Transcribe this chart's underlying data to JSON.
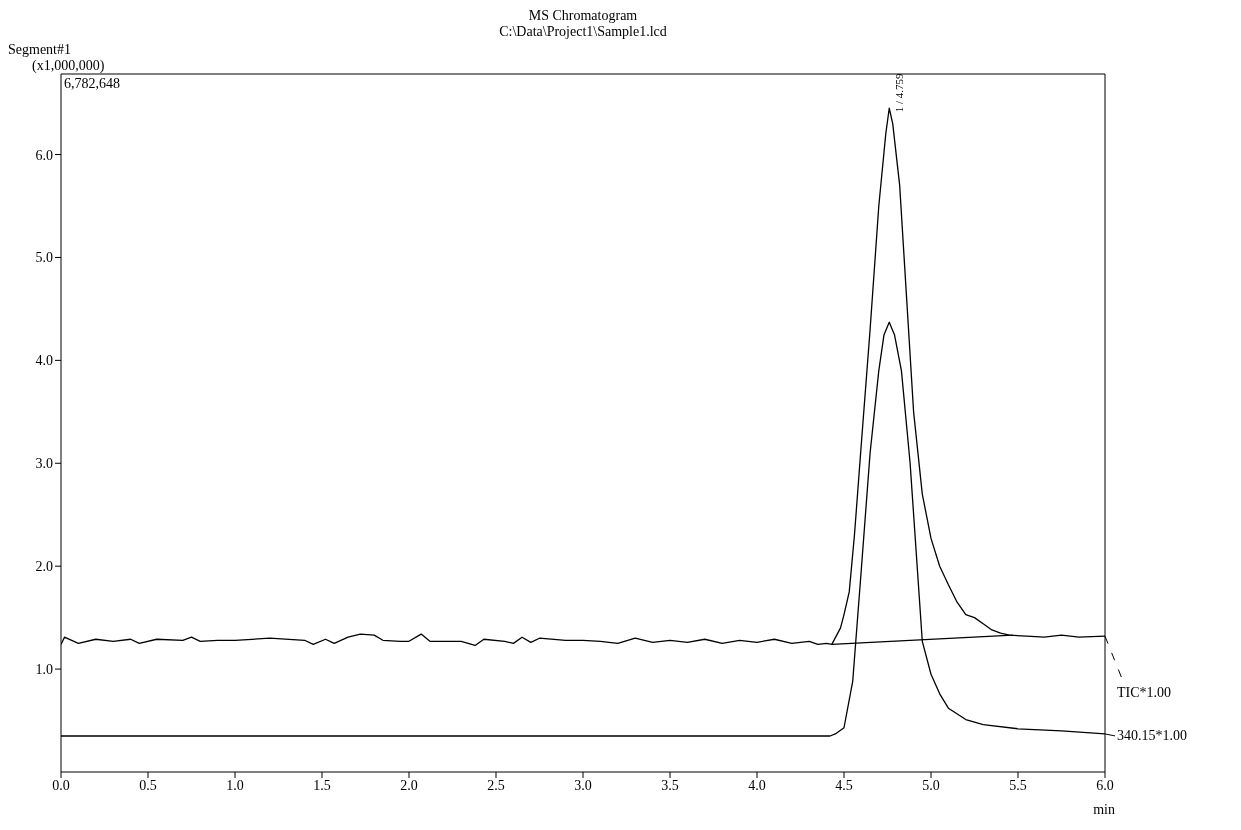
{
  "chart_data": {
    "type": "line",
    "title": "MS Chromatogram",
    "subtitle": "C:\\Data\\Project1\\Sample1.lcd",
    "xlabel": "min",
    "ylabel": "(x1,000,000)",
    "annotations": [
      "Segment#1",
      "6,782,648",
      {
        "text": "1 / 4.759",
        "x": 4.759,
        "y": 6.45
      }
    ],
    "xlim": [
      0,
      6
    ],
    "ylim": [
      0,
      6.782648
    ],
    "xticks": [
      {
        "value": 0,
        "label": "0.0"
      },
      0.5,
      {
        "value": 1,
        "label": "1.0"
      },
      1.5,
      {
        "value": 2,
        "label": "2.0"
      },
      2.5,
      {
        "value": 3,
        "label": "3.0"
      },
      3.5,
      {
        "value": 4,
        "label": "4.0"
      },
      4.5,
      {
        "value": 5,
        "label": "5.0"
      },
      5.5,
      {
        "value": 6,
        "label": "6.0"
      }
    ],
    "yticks": [
      {
        "value": 1,
        "label": "1.0"
      },
      {
        "value": 2,
        "label": "2.0"
      },
      {
        "value": 3,
        "label": "3.0"
      },
      {
        "value": 4,
        "label": "4.0"
      },
      {
        "value": 5,
        "label": "5.0"
      },
      {
        "value": 6,
        "label": "6.0"
      }
    ],
    "marker": "none",
    "line_style": "solid",
    "grid": false,
    "series": [
      {
        "name": "TIC*1.00",
        "color": "#000000",
        "x": [
          0,
          0.02,
          0.1,
          0.2,
          0.3,
          0.4,
          0.45,
          0.55,
          0.7,
          0.75,
          0.8,
          0.9,
          1.0,
          1.2,
          1.4,
          1.45,
          1.52,
          1.57,
          1.65,
          1.72,
          1.8,
          1.85,
          1.95,
          2.0,
          2.07,
          2.12,
          2.3,
          2.38,
          2.43,
          2.55,
          2.6,
          2.65,
          2.7,
          2.75,
          2.9,
          3.0,
          3.1,
          3.2,
          3.3,
          3.4,
          3.5,
          3.6,
          3.7,
          3.8,
          3.9,
          4.0,
          4.1,
          4.2,
          4.3,
          4.35,
          4.4,
          4.43,
          4.48,
          4.5,
          4.53,
          4.56,
          4.6,
          4.65,
          4.7,
          4.74,
          4.76,
          4.78,
          4.82,
          4.86,
          4.9,
          4.95,
          5.0,
          5.05,
          5.1,
          5.15,
          5.2,
          5.25,
          5.3,
          5.35,
          5.4,
          5.45,
          5.55,
          5.65,
          5.75,
          5.85,
          6.0
        ],
        "values": [
          1.24,
          1.31,
          1.25,
          1.29,
          1.27,
          1.29,
          1.25,
          1.29,
          1.28,
          1.31,
          1.27,
          1.28,
          1.28,
          1.3,
          1.28,
          1.24,
          1.29,
          1.25,
          1.31,
          1.34,
          1.33,
          1.28,
          1.27,
          1.27,
          1.34,
          1.27,
          1.27,
          1.23,
          1.29,
          1.27,
          1.25,
          1.31,
          1.26,
          1.3,
          1.28,
          1.28,
          1.27,
          1.25,
          1.3,
          1.26,
          1.28,
          1.26,
          1.29,
          1.25,
          1.28,
          1.26,
          1.29,
          1.25,
          1.27,
          1.24,
          1.25,
          1.24,
          1.4,
          1.53,
          1.75,
          2.3,
          3.2,
          4.3,
          5.5,
          6.2,
          6.45,
          6.3,
          5.7,
          4.6,
          3.5,
          2.7,
          2.27,
          2.0,
          1.82,
          1.65,
          1.53,
          1.5,
          1.44,
          1.38,
          1.35,
          1.33,
          1.32,
          1.31,
          1.33,
          1.31,
          1.32
        ]
      },
      {
        "name": "340.15*1.00",
        "color": "#000000",
        "x": [
          0,
          4.42,
          4.45,
          4.5,
          4.55,
          4.6,
          4.65,
          4.7,
          4.73,
          4.76,
          4.79,
          4.83,
          4.88,
          4.95,
          5.0,
          5.05,
          5.1,
          5.2,
          5.3,
          5.5,
          5.75,
          6.0
        ],
        "values": [
          0.35,
          0.35,
          0.37,
          0.43,
          0.88,
          1.98,
          3.1,
          3.9,
          4.25,
          4.37,
          4.25,
          3.9,
          3.0,
          1.27,
          0.95,
          0.76,
          0.62,
          0.51,
          0.46,
          0.42,
          0.4,
          0.37
        ]
      },
      {
        "type": "line",
        "color": "#000000",
        "x": [
          4.43,
          5.47
        ],
        "values": [
          1.24,
          1.33
        ]
      }
    ]
  }
}
